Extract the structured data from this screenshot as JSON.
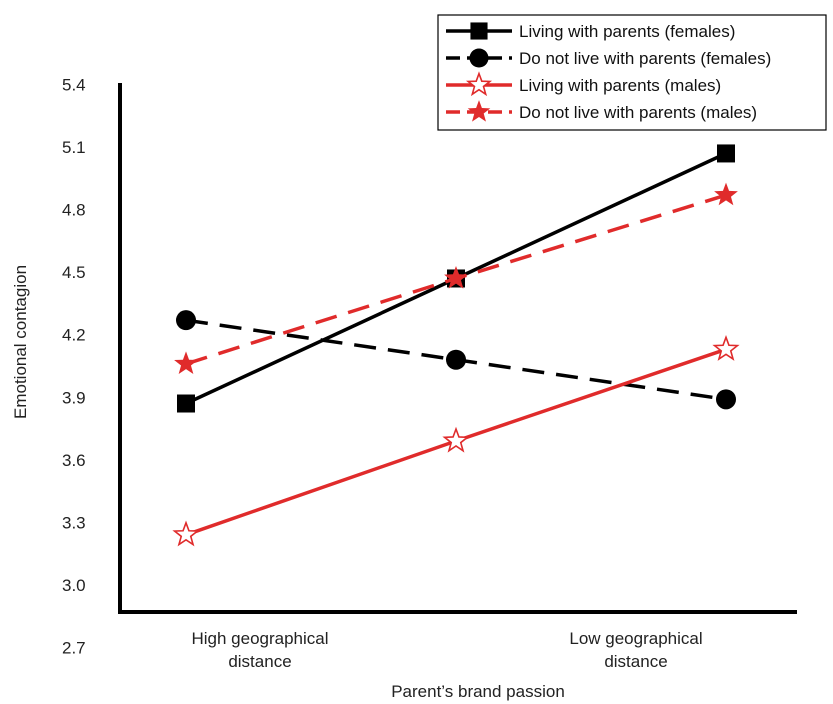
{
  "chart_data": {
    "type": "line",
    "title": "",
    "xlabel": "Parent’s brand passion",
    "ylabel": "Emotional contagion",
    "categories": [
      [
        "High geographical",
        "distance"
      ],
      [
        "",
        ""
      ],
      [
        "Low geographical",
        "distance"
      ]
    ],
    "x": [
      0,
      0.5,
      1
    ],
    "ylim": [
      2.5,
      5.6
    ],
    "yticks": [
      "2.7",
      "3.0",
      "3.3",
      "3.6",
      "3.9",
      "4.2",
      "4.5",
      "4.8",
      "5.1",
      "5.4"
    ],
    "grid": false,
    "legend_position": "top-right",
    "series": [
      {
        "name": "Living with parents (females)",
        "values": [
          3.87,
          4.47,
          5.07
        ],
        "color": "#000000",
        "dash": false,
        "marker": "square"
      },
      {
        "name": "Do not live with parents (females)",
        "values": [
          4.27,
          4.08,
          3.89
        ],
        "color": "#000000",
        "dash": true,
        "marker": "circle"
      },
      {
        "name": "Living with parents (males)",
        "values": [
          3.24,
          3.69,
          4.13
        ],
        "color": "#e02b2b",
        "dash": false,
        "marker": "star-open"
      },
      {
        "name": "Do not live with parents (males)",
        "values": [
          4.06,
          4.47,
          4.87
        ],
        "color": "#e02b2b",
        "dash": true,
        "marker": "star-filled"
      }
    ]
  }
}
